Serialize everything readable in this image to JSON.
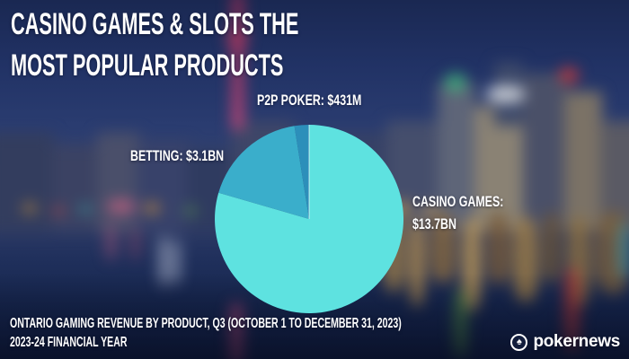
{
  "title": {
    "line1": "CASINO GAMES & SLOTS THE",
    "line2": "MOST POPULAR PRODUCTS"
  },
  "labels": {
    "p2p_poker": "P2P POKER: $431M",
    "betting": "BETTING: $3.1BN",
    "casino_line1": "CASINO GAMES:",
    "casino_line2": "$13.7BN"
  },
  "footer": {
    "line1": "ONTARIO GAMING REVENUE BY PRODUCT, Q3 (OCTOBER 1 TO DECEMBER 31, 2023)",
    "line2": "2023-24 FINANCIAL YEAR"
  },
  "logo": {
    "text": "pokernews",
    "icon": "spade-icon",
    "icon_glyph": "♠"
  },
  "chart_data": {
    "type": "pie",
    "title": "Ontario Gaming Revenue by Product, Q3 2023-24",
    "unit": "CAD",
    "start_angle_deg": 0,
    "direction": "clockwise",
    "segments": [
      {
        "label": "Casino Games",
        "value_bn": 13.7,
        "display": "$13.7BN",
        "color": "#5ee2e0"
      },
      {
        "label": "Betting",
        "value_bn": 3.1,
        "display": "$3.1BN",
        "color": "#3aaecb"
      },
      {
        "label": "P2P Poker",
        "value_bn": 0.431,
        "display": "$431M",
        "color": "#2c8fba"
      }
    ],
    "colors": {
      "divider": "rgba(255,255,255,0.55)"
    }
  }
}
